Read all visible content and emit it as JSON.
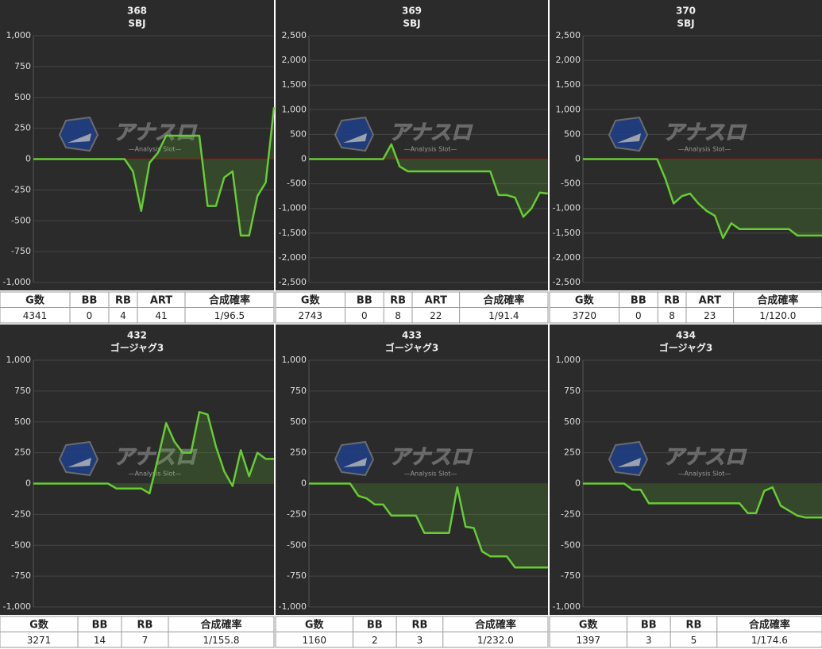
{
  "watermark": {
    "title": "アナスロ",
    "subtitle": "—Analysis Slot—"
  },
  "chart_data": [
    {
      "type": "line",
      "title": "368",
      "subtitle": "SBJ",
      "color": "#66cc33",
      "grid": true,
      "ylim": [
        -1000,
        1000
      ],
      "yticks": [
        {
          "value": 1000,
          "label": "1,000"
        },
        750,
        500,
        250,
        0,
        -250,
        -500,
        -750,
        {
          "value": -1000,
          "label": "-1,000"
        }
      ],
      "values": [
        0,
        0,
        0,
        0,
        0,
        0,
        0,
        0,
        0,
        0,
        0,
        0,
        -100,
        -420,
        -30,
        50,
        190,
        190,
        190,
        190,
        190,
        -380,
        -380,
        -150,
        -100,
        -620,
        -620,
        -300,
        -190,
        420
      ],
      "table": {
        "header": [
          "G数",
          "BB",
          "RB",
          "ART",
          "合成確率"
        ],
        "row": [
          4341,
          0,
          4,
          41,
          "1/96.5"
        ]
      }
    },
    {
      "type": "line",
      "title": "369",
      "subtitle": "SBJ",
      "color": "#66cc33",
      "grid": true,
      "ylim": [
        -2500,
        2500
      ],
      "yticks": [
        {
          "value": 2500,
          "label": "2,500"
        },
        {
          "value": 2000,
          "label": "2,000"
        },
        {
          "value": 1500,
          "label": "1,500"
        },
        {
          "value": 1000,
          "label": "1,000"
        },
        500,
        0,
        -500,
        {
          "value": -1000,
          "label": "-1,000"
        },
        {
          "value": -1500,
          "label": "-1,500"
        },
        {
          "value": -2000,
          "label": "-2,000"
        },
        {
          "value": -2500,
          "label": "-2,500"
        }
      ],
      "values": [
        0,
        0,
        0,
        0,
        0,
        0,
        0,
        0,
        0,
        0,
        300,
        -150,
        -250,
        -250,
        -250,
        -250,
        -250,
        -250,
        -250,
        -250,
        -250,
        -250,
        -250,
        -730,
        -730,
        -780,
        -1170,
        -1000,
        -680,
        -700
      ],
      "table": {
        "header": [
          "G数",
          "BB",
          "RB",
          "ART",
          "合成確率"
        ],
        "row": [
          2743,
          0,
          8,
          22,
          "1/91.4"
        ]
      }
    },
    {
      "type": "line",
      "title": "370",
      "subtitle": "SBJ",
      "color": "#66cc33",
      "grid": true,
      "ylim": [
        -2500,
        2500
      ],
      "yticks": [
        {
          "value": 2500,
          "label": "2,500"
        },
        {
          "value": 2000,
          "label": "2,000"
        },
        {
          "value": 1500,
          "label": "1,500"
        },
        {
          "value": 1000,
          "label": "1,000"
        },
        500,
        0,
        -500,
        {
          "value": -1000,
          "label": "-1,000"
        },
        {
          "value": -1500,
          "label": "-1,500"
        },
        {
          "value": -2000,
          "label": "-2,000"
        },
        {
          "value": -2500,
          "label": "-2,500"
        }
      ],
      "values": [
        0,
        0,
        0,
        0,
        0,
        0,
        0,
        0,
        0,
        0,
        -400,
        -900,
        -750,
        -700,
        -900,
        -1050,
        -1150,
        -1600,
        -1300,
        -1420,
        -1420,
        -1420,
        -1420,
        -1420,
        -1420,
        -1420,
        -1550,
        -1550,
        -1550,
        -1550
      ],
      "table": {
        "header": [
          "G数",
          "BB",
          "RB",
          "ART",
          "合成確率"
        ],
        "row": [
          3720,
          0,
          8,
          23,
          "1/120.0"
        ]
      }
    },
    {
      "type": "line",
      "title": "432",
      "subtitle": "ゴージャグ3",
      "color": "#66cc33",
      "grid": true,
      "ylim": [
        -1000,
        1000
      ],
      "yticks": [
        {
          "value": 1000,
          "label": "1,000"
        },
        750,
        500,
        250,
        0,
        -250,
        -500,
        -750,
        {
          "value": -1000,
          "label": "-1,000"
        }
      ],
      "values": [
        0,
        0,
        0,
        0,
        0,
        0,
        0,
        0,
        0,
        0,
        -40,
        -40,
        -40,
        -40,
        -80,
        200,
        490,
        340,
        250,
        250,
        580,
        560,
        300,
        100,
        -20,
        270,
        60,
        250,
        200,
        200
      ],
      "table": {
        "header": [
          "G数",
          "BB",
          "RB",
          "合成確率"
        ],
        "row": [
          3271,
          14,
          7,
          "1/155.8"
        ]
      }
    },
    {
      "type": "line",
      "title": "433",
      "subtitle": "ゴージャグ3",
      "color": "#66cc33",
      "grid": true,
      "ylim": [
        -1000,
        1000
      ],
      "yticks": [
        {
          "value": 1000,
          "label": "1,000"
        },
        750,
        500,
        250,
        0,
        -250,
        -500,
        -750,
        {
          "value": -1000,
          "label": "-1,000"
        }
      ],
      "values": [
        0,
        0,
        0,
        0,
        0,
        0,
        -100,
        -120,
        -170,
        -170,
        -260,
        -260,
        -260,
        -260,
        -400,
        -400,
        -400,
        -400,
        -30,
        -350,
        -360,
        -550,
        -590,
        -590,
        -590,
        -680,
        -680,
        -680,
        -680,
        -680
      ],
      "table": {
        "header": [
          "G数",
          "BB",
          "RB",
          "合成確率"
        ],
        "row": [
          1160,
          2,
          3,
          "1/232.0"
        ]
      }
    },
    {
      "type": "line",
      "title": "434",
      "subtitle": "ゴージャグ3",
      "color": "#66cc33",
      "grid": true,
      "ylim": [
        -1000,
        1000
      ],
      "yticks": [
        {
          "value": 1000,
          "label": "1,000"
        },
        750,
        500,
        250,
        0,
        -250,
        -500,
        -750,
        {
          "value": -1000,
          "label": "-1,000"
        }
      ],
      "values": [
        0,
        0,
        0,
        0,
        0,
        0,
        -50,
        -50,
        -160,
        -160,
        -160,
        -160,
        -160,
        -160,
        -160,
        -160,
        -160,
        -160,
        -160,
        -160,
        -240,
        -240,
        -60,
        -30,
        -180,
        -220,
        -260,
        -275,
        -275,
        -275
      ],
      "table": {
        "header": [
          "G数",
          "BB",
          "RB",
          "合成確率"
        ],
        "row": [
          1397,
          3,
          5,
          "1/174.6"
        ]
      }
    }
  ]
}
